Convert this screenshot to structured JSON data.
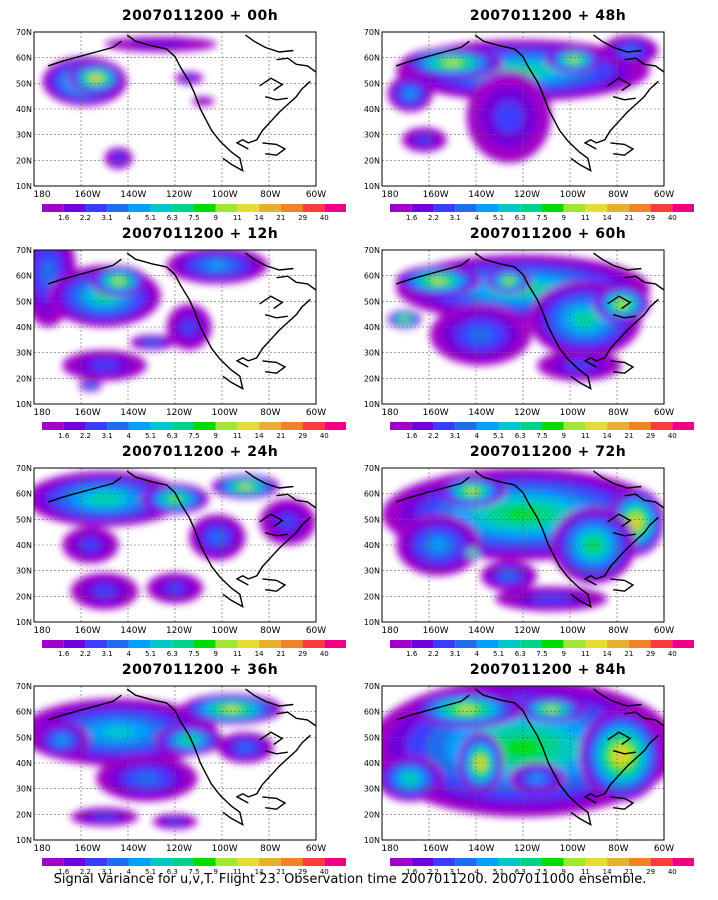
{
  "figure": {
    "caption": "Signal Variance for u,v,T. Flight 23. Observation time 2007011200. 2007011000 ensemble."
  },
  "axes": {
    "lat_labels": [
      "70N",
      "60N",
      "50N",
      "40N",
      "30N",
      "20N",
      "10N"
    ],
    "lon_labels": [
      "180",
      "160W",
      "140W",
      "120W",
      "100W",
      "80W",
      "60W"
    ]
  },
  "colorbar": {
    "levels": [
      "1.6",
      "2.2",
      "3.1",
      "4",
      "5.1",
      "6.3",
      "7.5",
      "9",
      "11",
      "14",
      "21",
      "29",
      "40"
    ],
    "colors": [
      "#a000c8",
      "#7000dc",
      "#3c3cff",
      "#1e6eeb",
      "#00a0ff",
      "#00c8c8",
      "#00d28c",
      "#00dc00",
      "#a0e632",
      "#e6dc32",
      "#e6af2d",
      "#f08228",
      "#fa3c3c",
      "#f00082"
    ]
  },
  "panels": [
    {
      "title": "2007011200 + 00h",
      "column": 0,
      "row": 0
    },
    {
      "title": "2007011200 + 12h",
      "column": 0,
      "row": 1
    },
    {
      "title": "2007011200 + 24h",
      "column": 0,
      "row": 2
    },
    {
      "title": "2007011200 + 36h",
      "column": 0,
      "row": 3
    },
    {
      "title": "2007011200 + 48h",
      "column": 1,
      "row": 0
    },
    {
      "title": "2007011200 + 60h",
      "column": 1,
      "row": 1
    },
    {
      "title": "2007011200 + 72h",
      "column": 1,
      "row": 2
    },
    {
      "title": "2007011200 + 84h",
      "column": 1,
      "row": 3
    }
  ]
}
